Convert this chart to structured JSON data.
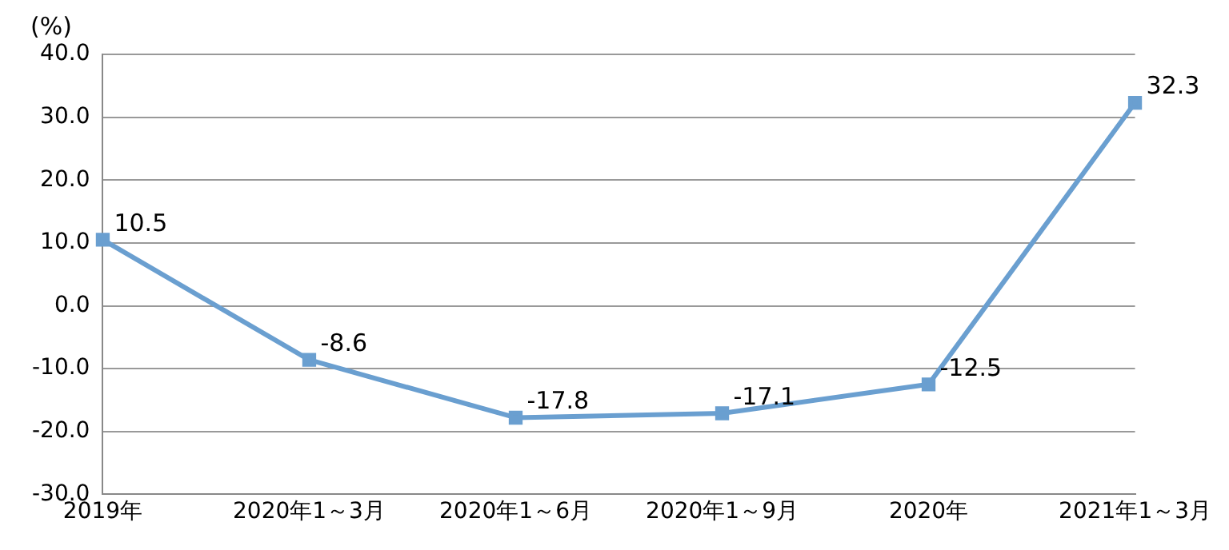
{
  "chart_data": {
    "type": "line",
    "ylabel": "(%)",
    "categories": [
      "2019年",
      "2020年1～3月",
      "2020年1～6月",
      "2020年1～9月",
      "2020年",
      "2021年1～3月"
    ],
    "series": [
      {
        "color": "#6a9fd0",
        "values": [
          10.5,
          -8.6,
          -17.8,
          -17.1,
          -12.5,
          32.3
        ]
      }
    ],
    "ylim": [
      -30,
      40
    ],
    "yticks": [
      {
        "value": -30,
        "label": "-30.0"
      },
      {
        "value": -20,
        "label": "-20.0"
      },
      {
        "value": -10,
        "label": "-10.0"
      },
      {
        "value": 0,
        "label": "0.0"
      },
      {
        "value": 10,
        "label": "10.0"
      },
      {
        "value": 20,
        "label": "20.0"
      },
      {
        "value": 30,
        "label": "30.0"
      },
      {
        "value": 40,
        "label": "40.0"
      }
    ],
    "grid": "y",
    "marker": "square",
    "line_style": "solid",
    "data_labels": true,
    "legend": false
  }
}
